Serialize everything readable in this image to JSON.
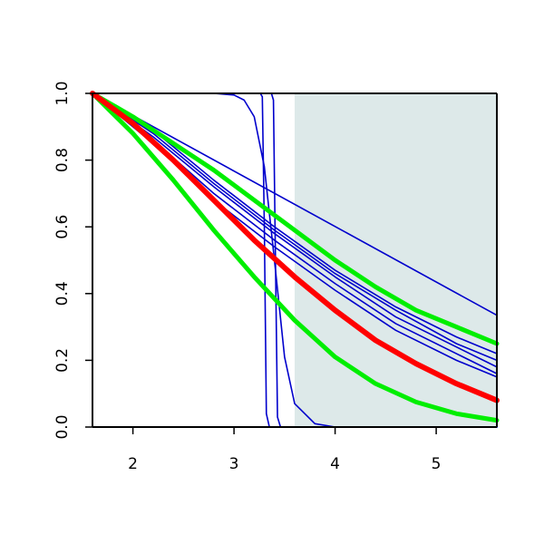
{
  "chart_data": {
    "type": "line",
    "xlim": [
      1.6,
      5.6
    ],
    "ylim": [
      0.0,
      1.0
    ],
    "x_ticks": [
      "2",
      "3",
      "4",
      "5"
    ],
    "y_ticks": [
      "0.0",
      "0.2",
      "0.4",
      "0.6",
      "0.8",
      "1.0"
    ],
    "grid": false,
    "legend": "none",
    "shaded_region": {
      "x_from": 3.6,
      "x_to": 5.6,
      "color": "#dde9e9"
    },
    "series": [
      {
        "color": "#0000cc",
        "line_width": 1.6,
        "x": [
          1.6,
          5.6
        ],
        "y": [
          1.0,
          0.335
        ]
      },
      {
        "color": "#0000cc",
        "line_width": 1.6,
        "x": [
          1.6,
          2.2,
          2.8,
          3.4,
          4.0,
          4.6,
          5.2,
          5.6
        ],
        "y": [
          1.0,
          0.89,
          0.74,
          0.6,
          0.47,
          0.36,
          0.27,
          0.22
        ]
      },
      {
        "color": "#0000cc",
        "line_width": 1.6,
        "x": [
          1.6,
          2.2,
          2.8,
          3.4,
          4.0,
          4.6,
          5.2,
          5.6
        ],
        "y": [
          1.0,
          0.88,
          0.73,
          0.59,
          0.46,
          0.35,
          0.25,
          0.2
        ]
      },
      {
        "color": "#0000cc",
        "line_width": 1.6,
        "x": [
          1.6,
          2.2,
          2.8,
          3.4,
          4.0,
          4.6,
          5.2,
          5.6
        ],
        "y": [
          1.0,
          0.87,
          0.72,
          0.58,
          0.45,
          0.33,
          0.24,
          0.18
        ]
      },
      {
        "color": "#0000cc",
        "line_width": 1.6,
        "x": [
          1.6,
          2.2,
          2.8,
          3.4,
          4.0,
          4.6,
          5.2,
          5.6
        ],
        "y": [
          1.0,
          0.86,
          0.7,
          0.56,
          0.43,
          0.31,
          0.22,
          0.16
        ]
      },
      {
        "color": "#0000cc",
        "line_width": 1.6,
        "x": [
          1.6,
          2.2,
          2.8,
          3.4,
          4.0,
          4.6,
          5.2,
          5.6
        ],
        "y": [
          1.0,
          0.85,
          0.68,
          0.54,
          0.41,
          0.29,
          0.2,
          0.15
        ]
      },
      {
        "color": "#0000cc",
        "line_width": 1.6,
        "x": [
          1.6,
          2.0,
          2.4,
          2.8,
          3.0,
          3.1,
          3.2,
          3.3,
          3.4,
          3.5,
          3.6,
          3.8,
          4.0,
          4.5,
          5.6
        ],
        "y": [
          1.0,
          1.0,
          1.0,
          1.0,
          0.995,
          0.98,
          0.93,
          0.78,
          0.5,
          0.21,
          0.07,
          0.01,
          0.0,
          0.0,
          0.0
        ]
      },
      {
        "color": "#0000cc",
        "line_width": 1.6,
        "x": [
          1.6,
          3.26,
          3.28,
          3.3,
          3.32,
          3.35,
          5.6
        ],
        "y": [
          1.0,
          1.0,
          0.99,
          0.6,
          0.04,
          0.0,
          0.0
        ]
      },
      {
        "color": "#0000cc",
        "line_width": 1.6,
        "x": [
          1.6,
          3.37,
          3.39,
          3.41,
          3.43,
          3.46,
          5.6
        ],
        "y": [
          1.0,
          1.0,
          0.98,
          0.5,
          0.03,
          0.0,
          0.0
        ]
      },
      {
        "color": "#00ee00",
        "line_width": 5,
        "x": [
          1.6,
          2.0,
          2.4,
          2.8,
          3.2,
          3.6,
          4.0,
          4.4,
          4.8,
          5.2,
          5.6
        ],
        "y": [
          1.0,
          0.93,
          0.85,
          0.77,
          0.68,
          0.59,
          0.5,
          0.42,
          0.35,
          0.3,
          0.25
        ]
      },
      {
        "color": "#00ee00",
        "line_width": 5,
        "x": [
          1.6,
          2.0,
          2.4,
          2.8,
          3.2,
          3.6,
          4.0,
          4.4,
          4.8,
          5.2,
          5.6
        ],
        "y": [
          1.0,
          0.88,
          0.74,
          0.59,
          0.45,
          0.32,
          0.21,
          0.13,
          0.075,
          0.04,
          0.02
        ]
      },
      {
        "color": "#ff0000",
        "line_width": 6,
        "x": [
          1.6,
          2.0,
          2.4,
          2.8,
          3.2,
          3.6,
          4.0,
          4.4,
          4.8,
          5.2,
          5.6
        ],
        "y": [
          1.0,
          0.91,
          0.8,
          0.68,
          0.56,
          0.45,
          0.35,
          0.26,
          0.19,
          0.13,
          0.08
        ]
      }
    ]
  }
}
